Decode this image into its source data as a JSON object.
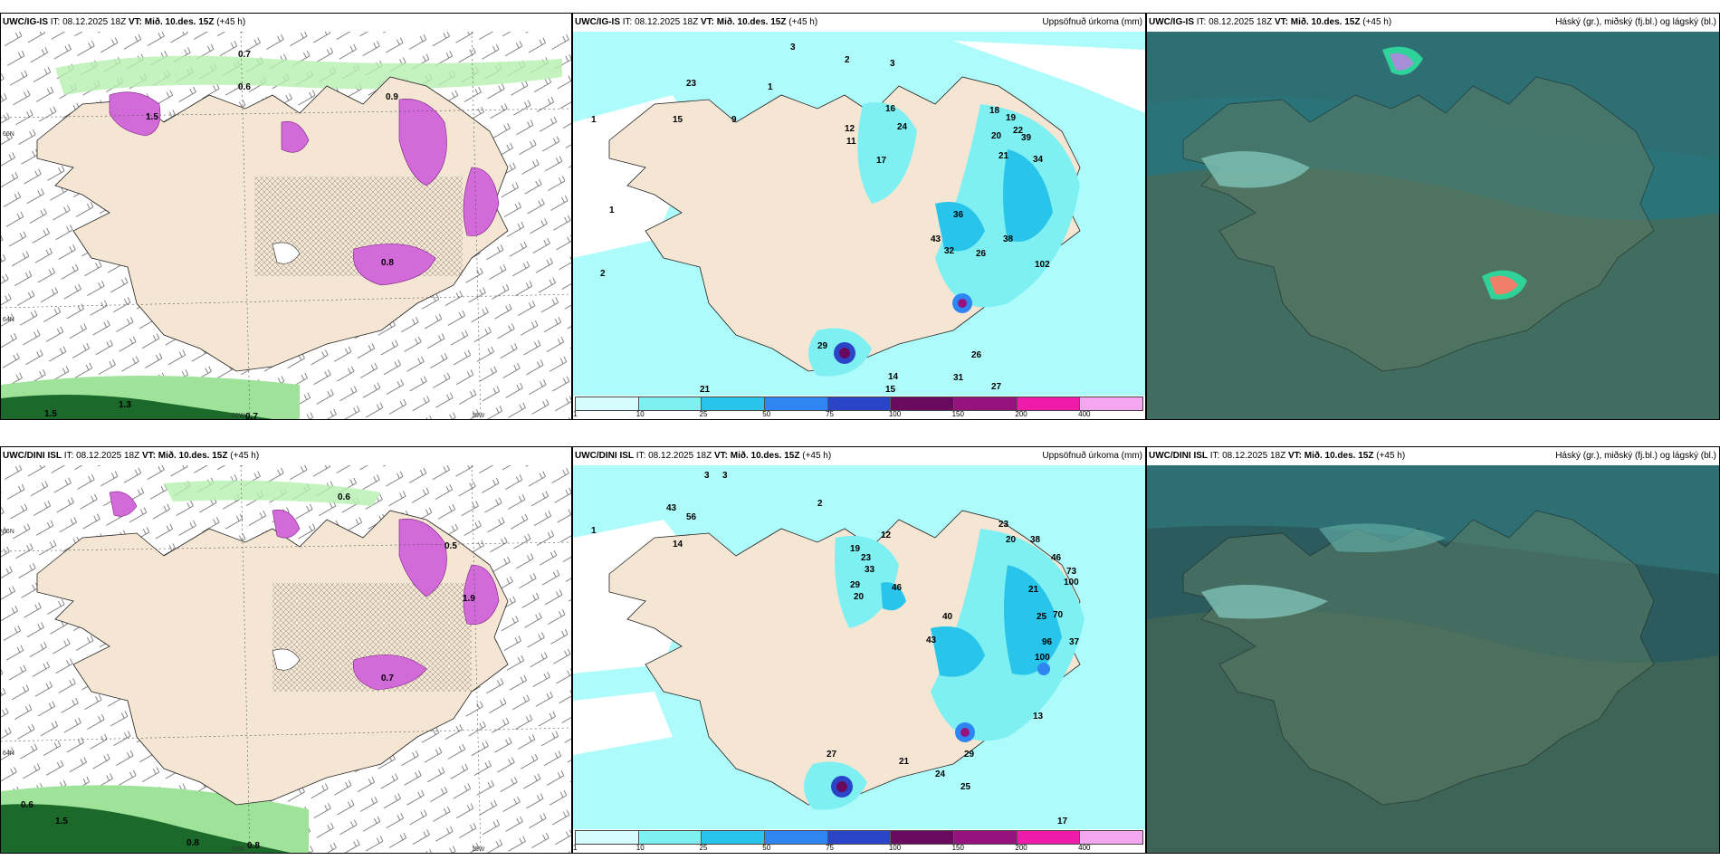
{
  "colors": {
    "land": "#f5e6d3",
    "precip_light": "#aefbfb",
    "wind_green": "#b7f0b0",
    "wind_dark_green": "#1b6a2b",
    "snow_magenta": "#d36ad9",
    "cloud_teal": "#2a7378",
    "cloud_teal_dark": "#2b5b5d"
  },
  "panels": [
    {
      "model": "UWC/IG-IS",
      "it_label": "IT:",
      "it_value": "08.12.2025 18Z",
      "vt_label": "VT:",
      "vt_value": "Mið. 10.des. 15Z",
      "lead": "(+45 h)",
      "right_title": "",
      "labels": [
        "0.7",
        "0.6",
        "0.9",
        "1.5",
        "1.3",
        "1.5",
        "0.7",
        "0.8"
      ],
      "axis_labels": [
        "66N",
        "64N",
        "20W",
        "15W"
      ]
    },
    {
      "model": "UWC/IG-IS",
      "it_label": "IT:",
      "it_value": "08.12.2025 18Z",
      "vt_label": "VT:",
      "vt_value": "Mið. 10.des. 15Z",
      "lead": "(+45 h)",
      "right_title": "Uppsöfnuð úrkoma (mm)",
      "labels": [
        "3",
        "2",
        "3",
        "1",
        "1",
        "2",
        "1",
        "23",
        "15",
        "9",
        "12",
        "16",
        "24",
        "11",
        "17",
        "18",
        "19",
        "22",
        "20",
        "39",
        "21",
        "34",
        "36",
        "43",
        "32",
        "26",
        "38",
        "102",
        "26",
        "31",
        "27",
        "29",
        "14",
        "15",
        "21"
      ],
      "legend_ticks": [
        "1",
        "10",
        "25",
        "50",
        "75",
        "100",
        "150",
        "200",
        "400"
      ],
      "legend_colors": [
        "#d6fdfd",
        "#7ff0f2",
        "#29c4ea",
        "#2f86f2",
        "#2b45c8",
        "#6a0a5f",
        "#96137e",
        "#f01ba8",
        "#f5a6f0"
      ]
    },
    {
      "model": "UWC/IG-IS",
      "it_label": "IT:",
      "it_value": "08.12.2025 18Z",
      "vt_label": "VT:",
      "vt_value": "Mið. 10.des. 15Z",
      "lead": "(+45 h)",
      "right_title": "Háský (gr.), miðský (fj.bl.) og lágský (bl.)",
      "labels": []
    },
    {
      "model": "UWC/DINI ISL",
      "it_label": "IT:",
      "it_value": "08.12.2025 18Z",
      "vt_label": "VT:",
      "vt_value": "Mið. 10.des. 15Z",
      "lead": "(+45 h)",
      "right_title": "",
      "labels": [
        "0.6",
        "0.6",
        "0.8",
        "0.8",
        "1.5",
        "1.9",
        "0.5",
        "0.7"
      ],
      "axis_labels": [
        "66N",
        "64N",
        "20W",
        "15W"
      ]
    },
    {
      "model": "UWC/DINI ISL",
      "it_label": "IT:",
      "it_value": "08.12.2025 18Z",
      "vt_label": "VT:",
      "vt_value": "Mið. 10.des. 15Z",
      "lead": "(+45 h)",
      "right_title": "Uppsöfnuð úrkoma (mm)",
      "labels": [
        "3",
        "3",
        "2",
        "1",
        "43",
        "56",
        "14",
        "19",
        "23",
        "33",
        "46",
        "29",
        "20",
        "12",
        "23",
        "20",
        "38",
        "46",
        "73",
        "100",
        "21",
        "40",
        "43",
        "25",
        "70",
        "96",
        "100",
        "37",
        "27",
        "21",
        "24",
        "29",
        "25",
        "13",
        "17"
      ],
      "legend_ticks": [
        "1",
        "10",
        "25",
        "50",
        "75",
        "100",
        "150",
        "200",
        "400"
      ],
      "legend_colors": [
        "#d6fdfd",
        "#7ff0f2",
        "#29c4ea",
        "#2f86f2",
        "#2b45c8",
        "#6a0a5f",
        "#96137e",
        "#f01ba8",
        "#f5a6f0"
      ]
    },
    {
      "model": "UWC/DINI ISL",
      "it_label": "IT:",
      "it_value": "08.12.2025 18Z",
      "vt_label": "VT:",
      "vt_value": "Mið. 10.des. 15Z",
      "lead": "(+45 h)",
      "right_title": "Háský (gr.), miðský (fj.bl.) og lágský (bl.)",
      "labels": []
    }
  ]
}
